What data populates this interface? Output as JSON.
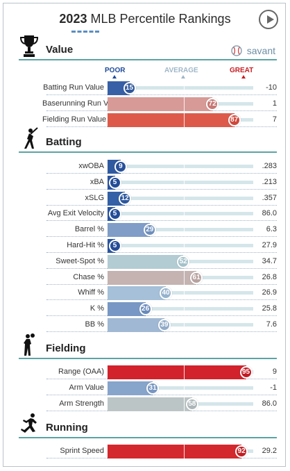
{
  "title": {
    "year": "2023",
    "rest": " MLB Percentile Rankings"
  },
  "brand": {
    "name": "savant",
    "icon": "baseball-icon"
  },
  "colors": {
    "accent_line": "#5aa4a3",
    "poor": "#1e4a9b",
    "average": "#9fb7c8",
    "great": "#c81d22"
  },
  "legend": {
    "poor": "POOR",
    "average": "AVERAGE",
    "great": "GREAT"
  },
  "sections": [
    {
      "id": "value",
      "title": "Value",
      "icon": "trophy-icon",
      "rows": [
        {
          "label": "Batting Run Value",
          "percentile": 15,
          "value": "-10",
          "color": "#3760a6",
          "knob": "#2f579c"
        },
        {
          "label": "Baserunning Run Value",
          "percentile": 72,
          "value": "1",
          "color": "#d79a96",
          "knob": "#c87874"
        },
        {
          "label": "Fielding Run Value",
          "percentile": 87,
          "value": "7",
          "color": "#dd5a4b",
          "knob": "#d0483b"
        }
      ]
    },
    {
      "id": "batting",
      "title": "Batting",
      "icon": "batter-icon",
      "rows": [
        {
          "label": "xwOBA",
          "percentile": 9,
          "value": ".283",
          "color": "#2f5aa0",
          "knob": "#27509a"
        },
        {
          "label": "xBA",
          "percentile": 5,
          "value": ".213",
          "color": "#2a54a0",
          "knob": "#244d98"
        },
        {
          "label": "xSLG",
          "percentile": 12,
          "value": ".357",
          "color": "#3360a6",
          "knob": "#2d579d"
        },
        {
          "label": "Avg Exit Velocity",
          "percentile": 5,
          "value": "86.0",
          "color": "#2a54a0",
          "knob": "#244d98"
        },
        {
          "label": "Barrel %",
          "percentile": 29,
          "value": "6.3",
          "color": "#7f9dc7",
          "knob": "#6e8fbd"
        },
        {
          "label": "Hard-Hit %",
          "percentile": 5,
          "value": "27.9",
          "color": "#2a54a0",
          "knob": "#244d98"
        },
        {
          "label": "Sweet-Spot %",
          "percentile": 52,
          "value": "34.7",
          "color": "#b3ccd3",
          "knob": "#a5c2ca"
        },
        {
          "label": "Chase %",
          "percentile": 61,
          "value": "26.8",
          "color": "#c4b3b1",
          "knob": "#b7a29f"
        },
        {
          "label": "Whiff %",
          "percentile": 40,
          "value": "26.9",
          "color": "#a5c0d8",
          "knob": "#96b3cd"
        },
        {
          "label": "K %",
          "percentile": 26,
          "value": "25.8",
          "color": "#7897c4",
          "knob": "#6a8aba"
        },
        {
          "label": "BB %",
          "percentile": 39,
          "value": "7.6",
          "color": "#a0b8d3",
          "knob": "#91abc8"
        }
      ]
    },
    {
      "id": "fielding",
      "title": "Fielding",
      "icon": "fielder-icon",
      "rows": [
        {
          "label": "Range (OAA)",
          "percentile": 95,
          "value": "9",
          "color": "#d2222b",
          "knob": "#c21a22"
        },
        {
          "label": "Arm Value",
          "percentile": 31,
          "value": "-1",
          "color": "#87a4cb",
          "knob": "#7896c1"
        },
        {
          "label": "Arm Strength",
          "percentile": 58,
          "value": "86.0",
          "color": "#bcc5c6",
          "knob": "#acb6b8"
        }
      ]
    },
    {
      "id": "running",
      "title": "Running",
      "icon": "runner-icon",
      "rows": [
        {
          "label": "Sprint Speed",
          "percentile": 92,
          "value": "29.2",
          "color": "#d3282d",
          "knob": "#c21e23"
        }
      ]
    }
  ]
}
